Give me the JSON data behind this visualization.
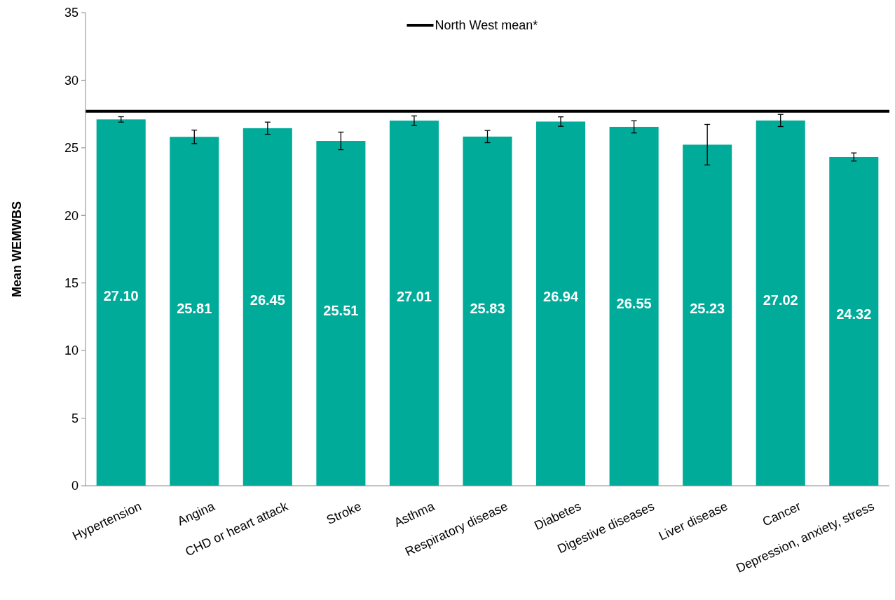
{
  "chart_data": {
    "type": "bar",
    "ylabel": "Mean WEMWBS",
    "categories": [
      "Hypertension",
      "Angina",
      "CHD or heart attack",
      "Stroke",
      "Asthma",
      "Respiratory disease",
      "Diabetes",
      "Digestive diseases",
      "Liver disease",
      "Cancer",
      "Depression, anxiety, stress"
    ],
    "values": [
      27.1,
      25.81,
      26.45,
      25.51,
      27.01,
      25.83,
      26.94,
      26.55,
      25.23,
      27.02,
      24.32
    ],
    "errors": [
      0.2,
      0.5,
      0.45,
      0.65,
      0.35,
      0.45,
      0.35,
      0.45,
      1.5,
      0.45,
      0.3
    ],
    "value_labels": [
      "27.10",
      "25.81",
      "26.45",
      "25.51",
      "27.01",
      "25.83",
      "26.94",
      "26.55",
      "25.23",
      "27.02",
      "24.32"
    ],
    "color": "#00ab9a",
    "ylim": [
      0,
      35
    ],
    "yticks": [
      0,
      5,
      10,
      15,
      20,
      25,
      30,
      35
    ],
    "ref_lines": [
      {
        "axis": "y",
        "value": 27.7,
        "label": "North West mean*",
        "color": "#000000"
      }
    ],
    "legend": "top",
    "grid": false
  }
}
